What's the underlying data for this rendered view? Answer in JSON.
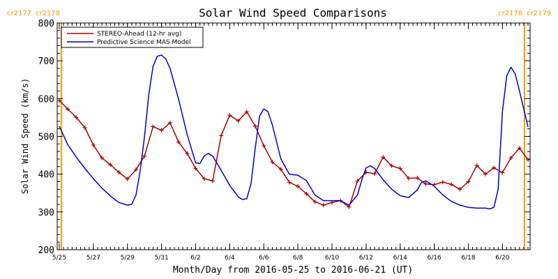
{
  "colors": {
    "background": "#ffffff",
    "axis": "#000000",
    "stereo": "#aa0000",
    "mas": "#0000cc",
    "carrington": "#ff9900"
  },
  "chart_data": {
    "type": "line",
    "title": "Solar Wind Speed Comparisons",
    "xlabel": "Month/Day from 2016-05-25 to 2016-06-21 (UT)",
    "ylabel": "Solar Wind Speed (km/s)",
    "ylim": [
      200,
      800
    ],
    "yticks": [
      200,
      300,
      400,
      500,
      600,
      700,
      800
    ],
    "xlim": [
      "2016-05-25T00:00",
      "2016-06-21T12:00"
    ],
    "xticks": [
      {
        "date": "2016-05-25",
        "label": "5/25"
      },
      {
        "date": "2016-05-27",
        "label": "5/27"
      },
      {
        "date": "2016-05-29",
        "label": "5/29"
      },
      {
        "date": "2016-05-31",
        "label": "5/31"
      },
      {
        "date": "2016-06-02",
        "label": "6/2"
      },
      {
        "date": "2016-06-04",
        "label": "6/4"
      },
      {
        "date": "2016-06-06",
        "label": "6/6"
      },
      {
        "date": "2016-06-08",
        "label": "6/8"
      },
      {
        "date": "2016-06-10",
        "label": "6/10"
      },
      {
        "date": "2016-06-12",
        "label": "6/12"
      },
      {
        "date": "2016-06-14",
        "label": "6/14"
      },
      {
        "date": "2016-06-16",
        "label": "6/16"
      },
      {
        "date": "2016-06-18",
        "label": "6/18"
      },
      {
        "date": "2016-06-20",
        "label": "6/20"
      }
    ],
    "grid": false,
    "legend_position": "top-left",
    "carrington_boundaries": [
      {
        "date": "2016-05-25T03:00",
        "label_left": "cr2177",
        "label_right": "cr2178"
      },
      {
        "date": "2016-06-21T07:00",
        "label_left": "cr2178",
        "label_right": "cr2179"
      }
    ],
    "series": [
      {
        "name": "STEREO-Ahead (12-hr avg)",
        "color": "#aa0000",
        "markers": true,
        "points": [
          [
            "2016-05-25T00:00",
            595
          ],
          [
            "2016-05-25T12:00",
            572
          ],
          [
            "2016-05-26T00:00",
            550
          ],
          [
            "2016-05-26T12:00",
            523
          ],
          [
            "2016-05-27T00:00",
            477
          ],
          [
            "2016-05-27T12:00",
            443
          ],
          [
            "2016-05-28T00:00",
            425
          ],
          [
            "2016-05-28T12:00",
            405
          ],
          [
            "2016-05-29T00:00",
            387
          ],
          [
            "2016-05-29T12:00",
            412
          ],
          [
            "2016-05-30T00:00",
            448
          ],
          [
            "2016-05-30T12:00",
            526
          ],
          [
            "2016-05-31T00:00",
            516
          ],
          [
            "2016-05-31T12:00",
            536
          ],
          [
            "2016-06-01T00:00",
            485
          ],
          [
            "2016-06-01T12:00",
            455
          ],
          [
            "2016-06-02T00:00",
            415
          ],
          [
            "2016-06-02T12:00",
            388
          ],
          [
            "2016-06-03T00:00",
            382
          ],
          [
            "2016-06-03T12:00",
            502
          ],
          [
            "2016-06-04T00:00",
            556
          ],
          [
            "2016-06-04T12:00",
            541
          ],
          [
            "2016-06-05T00:00",
            565
          ],
          [
            "2016-06-05T12:00",
            527
          ],
          [
            "2016-06-06T00:00",
            475
          ],
          [
            "2016-06-06T12:00",
            432
          ],
          [
            "2016-06-07T00:00",
            413
          ],
          [
            "2016-06-07T12:00",
            378
          ],
          [
            "2016-06-08T00:00",
            368
          ],
          [
            "2016-06-08T12:00",
            348
          ],
          [
            "2016-06-09T00:00",
            327
          ],
          [
            "2016-06-09T12:00",
            318
          ],
          [
            "2016-06-10T00:00",
            325
          ],
          [
            "2016-06-10T12:00",
            330
          ],
          [
            "2016-06-11T00:00",
            313
          ],
          [
            "2016-06-11T12:00",
            382
          ],
          [
            "2016-06-12T00:00",
            405
          ],
          [
            "2016-06-12T12:00",
            401
          ],
          [
            "2016-06-13T00:00",
            445
          ],
          [
            "2016-06-13T12:00",
            422
          ],
          [
            "2016-06-14T00:00",
            415
          ],
          [
            "2016-06-14T12:00",
            389
          ],
          [
            "2016-06-15T00:00",
            390
          ],
          [
            "2016-06-15T12:00",
            374
          ],
          [
            "2016-06-16T00:00",
            372
          ],
          [
            "2016-06-16T12:00",
            379
          ],
          [
            "2016-06-17T00:00",
            373
          ],
          [
            "2016-06-17T12:00",
            360
          ],
          [
            "2016-06-18T00:00",
            380
          ],
          [
            "2016-06-18T12:00",
            423
          ],
          [
            "2016-06-19T00:00",
            400
          ],
          [
            "2016-06-19T12:00",
            417
          ],
          [
            "2016-06-20T00:00",
            404
          ],
          [
            "2016-06-20T12:00",
            443
          ],
          [
            "2016-06-21T00:00",
            469
          ],
          [
            "2016-06-21T12:00",
            438
          ]
        ]
      },
      {
        "name": "Predictive Science MAS Model",
        "color": "#0000cc",
        "markers": false,
        "points": [
          [
            "2016-05-25T00:00",
            527
          ],
          [
            "2016-05-25T12:00",
            478
          ],
          [
            "2016-05-26T00:00",
            445
          ],
          [
            "2016-05-26T12:00",
            415
          ],
          [
            "2016-05-27T00:00",
            388
          ],
          [
            "2016-05-27T12:00",
            363
          ],
          [
            "2016-05-28T00:00",
            342
          ],
          [
            "2016-05-28T12:00",
            325
          ],
          [
            "2016-05-29T00:00",
            318
          ],
          [
            "2016-05-29T06:00",
            320
          ],
          [
            "2016-05-29T12:00",
            345
          ],
          [
            "2016-05-29T18:00",
            410
          ],
          [
            "2016-05-30T00:00",
            500
          ],
          [
            "2016-05-30T06:00",
            610
          ],
          [
            "2016-05-30T12:00",
            685
          ],
          [
            "2016-05-30T18:00",
            712
          ],
          [
            "2016-05-31T00:00",
            715
          ],
          [
            "2016-05-31T06:00",
            705
          ],
          [
            "2016-05-31T12:00",
            680
          ],
          [
            "2016-06-01T00:00",
            598
          ],
          [
            "2016-06-01T12:00",
            505
          ],
          [
            "2016-06-02T00:00",
            430
          ],
          [
            "2016-06-02T06:00",
            428
          ],
          [
            "2016-06-02T12:00",
            448
          ],
          [
            "2016-06-02T18:00",
            455
          ],
          [
            "2016-06-03T00:00",
            448
          ],
          [
            "2016-06-03T12:00",
            410
          ],
          [
            "2016-06-04T00:00",
            370
          ],
          [
            "2016-06-04T12:00",
            340
          ],
          [
            "2016-06-04T18:00",
            333
          ],
          [
            "2016-06-05T00:00",
            335
          ],
          [
            "2016-06-05T06:00",
            375
          ],
          [
            "2016-06-05T12:00",
            470
          ],
          [
            "2016-06-05T18:00",
            553
          ],
          [
            "2016-06-06T00:00",
            573
          ],
          [
            "2016-06-06T06:00",
            565
          ],
          [
            "2016-06-06T12:00",
            530
          ],
          [
            "2016-06-07T00:00",
            440
          ],
          [
            "2016-06-07T12:00",
            400
          ],
          [
            "2016-06-08T00:00",
            397
          ],
          [
            "2016-06-08T12:00",
            383
          ],
          [
            "2016-06-09T00:00",
            345
          ],
          [
            "2016-06-09T12:00",
            330
          ],
          [
            "2016-06-10T00:00",
            330
          ],
          [
            "2016-06-10T12:00",
            330
          ],
          [
            "2016-06-11T00:00",
            318
          ],
          [
            "2016-06-11T12:00",
            345
          ],
          [
            "2016-06-11T18:00",
            385
          ],
          [
            "2016-06-12T00:00",
            417
          ],
          [
            "2016-06-12T06:00",
            422
          ],
          [
            "2016-06-12T12:00",
            415
          ],
          [
            "2016-06-13T00:00",
            385
          ],
          [
            "2016-06-13T12:00",
            360
          ],
          [
            "2016-06-14T00:00",
            343
          ],
          [
            "2016-06-14T12:00",
            338
          ],
          [
            "2016-06-15T00:00",
            358
          ],
          [
            "2016-06-15T06:00",
            378
          ],
          [
            "2016-06-15T12:00",
            382
          ],
          [
            "2016-06-16T00:00",
            368
          ],
          [
            "2016-06-16T12:00",
            345
          ],
          [
            "2016-06-17T00:00",
            328
          ],
          [
            "2016-06-17T12:00",
            318
          ],
          [
            "2016-06-18T00:00",
            312
          ],
          [
            "2016-06-18T12:00",
            310
          ],
          [
            "2016-06-19T00:00",
            310
          ],
          [
            "2016-06-19T06:00",
            308
          ],
          [
            "2016-06-19T12:00",
            312
          ],
          [
            "2016-06-19T18:00",
            360
          ],
          [
            "2016-06-20T00:00",
            565
          ],
          [
            "2016-06-20T06:00",
            660
          ],
          [
            "2016-06-20T12:00",
            683
          ],
          [
            "2016-06-20T18:00",
            665
          ],
          [
            "2016-06-21T00:00",
            620
          ],
          [
            "2016-06-21T12:00",
            525
          ]
        ]
      }
    ]
  }
}
